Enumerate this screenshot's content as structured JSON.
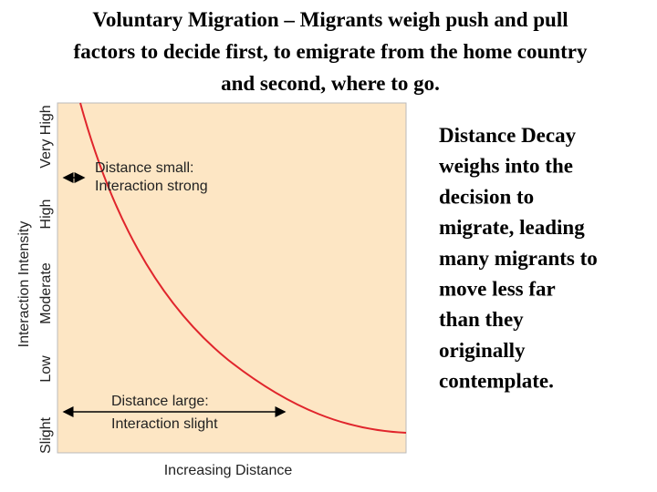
{
  "header": {
    "title_lines": [
      "Voluntary Migration – Migrants weigh push and pull",
      "factors to decide first, to emigrate from the home country",
      "and second, where to go."
    ]
  },
  "diagram": {
    "y_axis_label": "Interaction Intensity",
    "x_axis_label": "Increasing Distance",
    "levels": [
      "Very High",
      "High",
      "Moderate",
      "Low",
      "Slight"
    ],
    "annotations": [
      [
        "Distance small:",
        "Interaction strong"
      ],
      [
        "Distance large:",
        "Interaction slight"
      ]
    ]
  },
  "body": {
    "lines": [
      "Distance Decay",
      "weighs into the",
      "decision to",
      "migrate, leading",
      "many migrants to",
      "move less far",
      "than they",
      "originally",
      "contemplate."
    ]
  }
}
